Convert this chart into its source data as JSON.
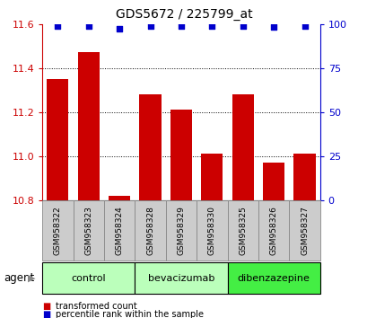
{
  "title": "GDS5672 / 225799_at",
  "samples": [
    "GSM958322",
    "GSM958323",
    "GSM958324",
    "GSM958328",
    "GSM958329",
    "GSM958330",
    "GSM958325",
    "GSM958326",
    "GSM958327"
  ],
  "transformed_counts": [
    11.35,
    11.47,
    10.82,
    11.28,
    11.21,
    11.01,
    11.28,
    10.97,
    11.01
  ],
  "percentile_ranks": [
    99,
    99,
    97,
    99,
    99,
    99,
    99,
    98,
    99
  ],
  "groups": [
    {
      "label": "control",
      "indices": [
        0,
        1,
        2
      ],
      "color": "#bbffbb"
    },
    {
      "label": "bevacizumab",
      "indices": [
        3,
        4,
        5
      ],
      "color": "#bbffbb"
    },
    {
      "label": "dibenzazepine",
      "indices": [
        6,
        7,
        8
      ],
      "color": "#44ee44"
    }
  ],
  "bar_color": "#cc0000",
  "dot_color": "#0000cc",
  "ylim_left": [
    10.8,
    11.6
  ],
  "ylim_right": [
    0,
    100
  ],
  "yticks_left": [
    10.8,
    11.0,
    11.2,
    11.4,
    11.6
  ],
  "yticks_right": [
    0,
    25,
    50,
    75,
    100
  ],
  "bar_width": 0.7,
  "dot_size": 25,
  "sample_box_color": "#cccccc",
  "sample_box_edge": "#888888"
}
